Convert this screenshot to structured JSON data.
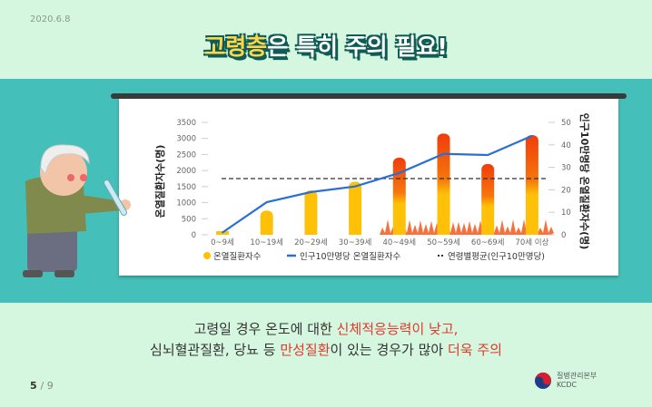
{
  "date": "2020.6.8",
  "title": {
    "highlight": "고령층",
    "rest": "은 특히 주의 필요!"
  },
  "caption": {
    "line1_a": "고령일 경우 온도에 대한 ",
    "line1_red": "신체적응능력이 낮고,",
    "line2_a": "심뇌혈관질환, 당뇨 등 ",
    "line2_red1": "만성질환",
    "line2_b": "이 있는 경우가 많아 ",
    "line2_red2": "더욱 주의"
  },
  "pagination": {
    "current": "5",
    "total": "/ 9"
  },
  "logo": {
    "name_ko": "질병관리본부",
    "name_en": "KCDC"
  },
  "colors": {
    "bar": "#ffc107",
    "bar_hot": "#f03c0c",
    "line": "#2a6fd6",
    "average": "#333333",
    "band": "#45bfb9",
    "accent": "#e0382c"
  },
  "chart_data": {
    "type": "bar+line",
    "categories": [
      "0~9세",
      "10~19세",
      "20~29세",
      "30~39세",
      "40~49세",
      "50~59세",
      "60~69세",
      "70세 이상"
    ],
    "series": [
      {
        "name": "온열질환자수",
        "type": "bar",
        "axis": "left",
        "values": [
          100,
          750,
          1380,
          1650,
          2400,
          3150,
          2200,
          3100
        ]
      },
      {
        "name": "인구10만명당 온열질환자수",
        "type": "line",
        "axis": "right",
        "values": [
          1,
          14.5,
          19,
          21.5,
          27.5,
          36,
          35.5,
          44
        ]
      },
      {
        "name": "연령별평균(인구10만명당)",
        "type": "dashed-hline",
        "axis": "right",
        "value": 25
      }
    ],
    "ylabel": "온열질환자수(명)",
    "y2label": "인구10만명당 온열질환자수(명)",
    "ylim": [
      0,
      3500
    ],
    "y2lim": [
      0,
      50
    ],
    "yticks": [
      "0",
      "500",
      "1000",
      "1500",
      "2000",
      "2500",
      "3000",
      "3500"
    ],
    "y2ticks": [
      "0",
      "10",
      "20",
      "30",
      "40",
      "50"
    ],
    "legend": "bottom"
  }
}
